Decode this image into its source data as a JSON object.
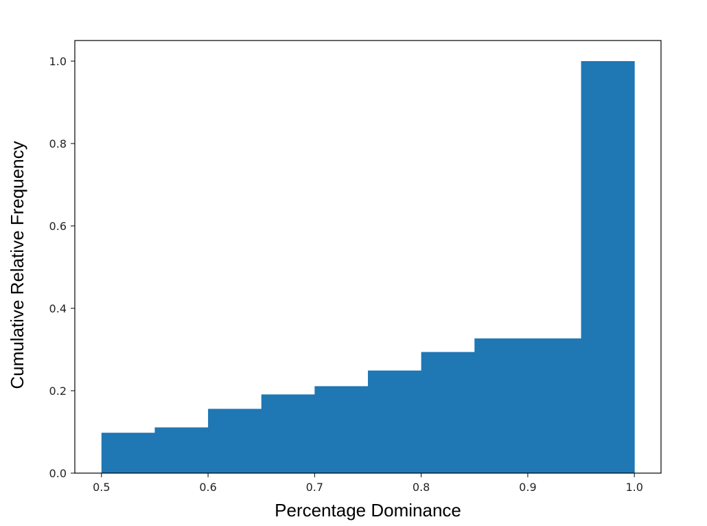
{
  "chart_data": {
    "type": "bar",
    "subtype": "cumulative histogram",
    "title": "",
    "xlabel": "Percentage Dominance",
    "ylabel": "Cumulative Relative Frequency",
    "bin_edges": [
      0.5,
      0.55,
      0.6,
      0.65,
      0.7,
      0.75,
      0.8,
      0.85,
      0.9,
      0.95,
      1.0
    ],
    "values": [
      0.098,
      0.111,
      0.156,
      0.191,
      0.211,
      0.249,
      0.294,
      0.327,
      0.327,
      1.0
    ],
    "xlim": [
      0.475,
      1.025
    ],
    "ylim": [
      0.0,
      1.05
    ],
    "xticks": [
      0.5,
      0.6,
      0.7,
      0.8,
      0.9,
      1.0
    ],
    "xtick_labels": [
      "0.5",
      "0.6",
      "0.7",
      "0.8",
      "0.9",
      "1.0"
    ],
    "yticks": [
      0.0,
      0.2,
      0.4,
      0.6,
      0.8,
      1.0
    ],
    "ytick_labels": [
      "0.0",
      "0.2",
      "0.4",
      "0.6",
      "0.8",
      "1.0"
    ],
    "bar_color": "#1f77b4",
    "grid": false,
    "legend": "none"
  }
}
